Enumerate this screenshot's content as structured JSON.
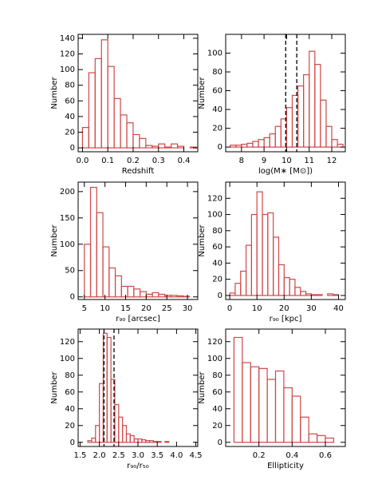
{
  "chart_data": [
    {
      "type": "histogram",
      "xlabel": "Redshift",
      "ylabel": "Number",
      "color": "#d04848",
      "bins": [
        0,
        0.025,
        0.05,
        0.075,
        0.1,
        0.125,
        0.15,
        0.175,
        0.2,
        0.225,
        0.25,
        0.275,
        0.3,
        0.325,
        0.35,
        0.375,
        0.4,
        0.425,
        0.45,
        0.475
      ],
      "counts": [
        26,
        96,
        114,
        138,
        104,
        63,
        42,
        32,
        17,
        12,
        3,
        2,
        5,
        1,
        5,
        2,
        0,
        1,
        0
      ],
      "xlim": [
        -0.017,
        0.455
      ],
      "ylim": [
        -5,
        145
      ],
      "xticks": [
        {
          "value": 0,
          "label": "0.0"
        },
        0.1,
        0.2,
        0.3,
        0.4
      ],
      "yticks": [
        0,
        20,
        40,
        60,
        80,
        100,
        120,
        140
      ]
    },
    {
      "type": "histogram",
      "xlabel": "log(M∗ [M⊙])",
      "ylabel": "Number",
      "color": "#d04848",
      "bins": [
        7.5,
        7.75,
        8,
        8.25,
        8.5,
        8.75,
        9,
        9.25,
        9.5,
        9.75,
        10,
        10.25,
        10.5,
        10.75,
        11,
        11.25,
        11.5,
        11.75,
        12,
        12.25,
        12.5
      ],
      "counts": [
        2,
        2,
        3,
        4,
        6,
        8,
        10,
        14,
        22,
        30,
        42,
        55,
        65,
        77,
        102,
        88,
        50,
        22,
        8,
        3
      ],
      "vlines": [
        9.96,
        10.45
      ],
      "xlim": [
        7.3,
        12.6
      ],
      "ylim": [
        -5,
        120
      ],
      "xticks": [
        8,
        9,
        10,
        11,
        12
      ],
      "yticks": [
        0,
        20,
        40,
        60,
        80,
        100
      ]
    },
    {
      "type": "histogram",
      "xlabel": "r₉₀ [arcsec]",
      "ylabel": "Number",
      "color": "#d04848",
      "bins": [
        5,
        6.5,
        8,
        9.5,
        11,
        12.5,
        14,
        15.5,
        17,
        18.5,
        20,
        21.5,
        23,
        24.5,
        26,
        27.5,
        29,
        30.5,
        32
      ],
      "counts": [
        100,
        208,
        160,
        95,
        55,
        40,
        20,
        20,
        15,
        10,
        5,
        8,
        5,
        3,
        3,
        2,
        1,
        0
      ],
      "xlim": [
        3.5,
        32.5
      ],
      "ylim": [
        -5,
        218
      ],
      "xticks": [
        5,
        10,
        15,
        20,
        25,
        30
      ],
      "yticks": [
        0,
        50,
        100,
        150,
        200
      ]
    },
    {
      "type": "histogram",
      "xlabel": "r₉₀ [kpc]",
      "ylabel": "Number",
      "color": "#d04848",
      "bins": [
        0,
        2,
        4,
        6,
        8,
        10,
        12,
        14,
        16,
        18,
        20,
        22,
        24,
        26,
        28,
        30,
        32,
        34,
        36,
        38,
        40,
        42
      ],
      "counts": [
        3,
        15,
        30,
        62,
        100,
        128,
        100,
        102,
        72,
        38,
        22,
        20,
        10,
        5,
        2,
        1,
        1,
        0,
        2,
        1,
        0
      ],
      "xlim": [
        -1.5,
        42.5
      ],
      "ylim": [
        -5,
        140
      ],
      "xticks": [
        0,
        10,
        20,
        30,
        40
      ],
      "yticks": [
        0,
        20,
        40,
        60,
        80,
        100,
        120
      ]
    },
    {
      "type": "histogram",
      "xlabel": "r₉₀/r₅₀",
      "ylabel": "Number",
      "color": "#d04848",
      "bins": [
        1.7,
        1.8,
        1.9,
        2.0,
        2.1,
        2.2,
        2.3,
        2.4,
        2.5,
        2.6,
        2.7,
        2.8,
        2.9,
        3.0,
        3.1,
        3.2,
        3.3,
        3.4,
        3.5,
        3.6,
        3.7,
        3.8
      ],
      "counts": [
        2,
        5,
        20,
        70,
        130,
        125,
        75,
        45,
        30,
        20,
        10,
        8,
        4,
        4,
        3,
        2,
        2,
        1,
        1,
        0,
        1
      ],
      "vlines": [
        2.12,
        2.38
      ],
      "xlim": [
        1.45,
        4.55
      ],
      "ylim": [
        -5,
        135
      ],
      "xticks": [
        1.5,
        {
          "value": 2,
          "label": "2.0"
        },
        2.5,
        {
          "value": 3,
          "label": "3.0"
        },
        3.5,
        {
          "value": 4,
          "label": "4.0"
        },
        4.5
      ],
      "yticks": [
        0,
        20,
        40,
        60,
        80,
        100,
        120
      ]
    },
    {
      "type": "histogram",
      "xlabel": "Ellipticity",
      "ylabel": "Number",
      "color": "#d04848",
      "bins": [
        0.05,
        0.1,
        0.15,
        0.2,
        0.25,
        0.3,
        0.35,
        0.4,
        0.45,
        0.5,
        0.55,
        0.6,
        0.65,
        0.7
      ],
      "counts": [
        125,
        95,
        90,
        88,
        75,
        85,
        65,
        55,
        30,
        10,
        8,
        5,
        0
      ],
      "xlim": [
        0,
        0.72
      ],
      "ylim": [
        -5,
        135
      ],
      "xticks": [
        0.2,
        0.4,
        0.6
      ],
      "yticks": [
        0,
        20,
        40,
        60,
        80,
        100,
        120
      ]
    }
  ]
}
